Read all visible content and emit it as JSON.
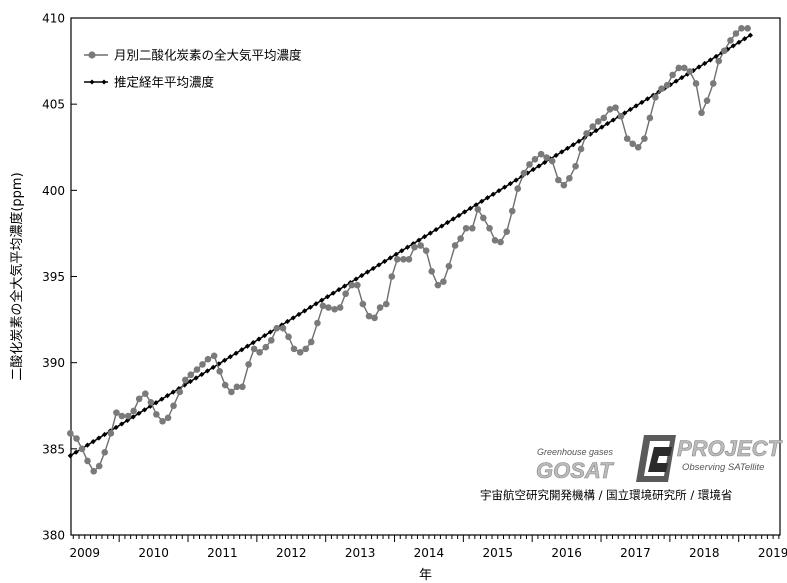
{
  "chart_data": {
    "type": "line",
    "title": "",
    "xlabel": "年",
    "ylabel": "二酸化炭素の全大気平均濃度(ppm)",
    "ylim": [
      380,
      410
    ],
    "yticks": [
      380,
      385,
      390,
      395,
      400,
      405,
      410
    ],
    "xlim": [
      2009.3,
      2019.6
    ],
    "xticks": [
      "2009",
      "2010",
      "2011",
      "2012",
      "2013",
      "2014",
      "2015",
      "2016",
      "2017",
      "2018",
      "2019"
    ],
    "grid": false,
    "legend_position": "top-left",
    "series": [
      {
        "name": "月別二酸化炭素の全大気平均濃度",
        "color": "#6e6e6e",
        "marker": "circle",
        "x": [
          2009.29,
          2009.38,
          2009.46,
          2009.54,
          2009.63,
          2009.71,
          2009.79,
          2009.88,
          2009.96,
          2010.04,
          2010.13,
          2010.21,
          2010.29,
          2010.38,
          2010.46,
          2010.54,
          2010.63,
          2010.71,
          2010.79,
          2010.88,
          2010.96,
          2011.04,
          2011.13,
          2011.21,
          2011.29,
          2011.38,
          2011.46,
          2011.54,
          2011.63,
          2011.71,
          2011.79,
          2011.88,
          2011.96,
          2012.04,
          2012.13,
          2012.21,
          2012.29,
          2012.38,
          2012.46,
          2012.54,
          2012.63,
          2012.71,
          2012.79,
          2012.88,
          2012.96,
          2013.04,
          2013.13,
          2013.21,
          2013.29,
          2013.38,
          2013.46,
          2013.54,
          2013.63,
          2013.71,
          2013.79,
          2013.88,
          2013.96,
          2014.04,
          2014.13,
          2014.21,
          2014.29,
          2014.38,
          2014.46,
          2014.54,
          2014.63,
          2014.71,
          2014.79,
          2014.88,
          2014.96,
          2015.04,
          2015.13,
          2015.21,
          2015.29,
          2015.38,
          2015.46,
          2015.54,
          2015.63,
          2015.71,
          2015.79,
          2015.88,
          2015.96,
          2016.04,
          2016.13,
          2016.21,
          2016.29,
          2016.38,
          2016.46,
          2016.54,
          2016.63,
          2016.71,
          2016.79,
          2016.88,
          2016.96,
          2017.04,
          2017.13,
          2017.21,
          2017.29,
          2017.38,
          2017.46,
          2017.54,
          2017.63,
          2017.71,
          2017.79,
          2017.88,
          2017.96,
          2018.04,
          2018.13,
          2018.21,
          2018.29,
          2018.38,
          2018.46,
          2018.54,
          2018.63,
          2018.71,
          2018.79,
          2018.88,
          2018.96,
          2019.04,
          2019.13
        ],
        "y": [
          385.9,
          385.6,
          385.0,
          384.3,
          383.7,
          384.0,
          384.8,
          385.9,
          387.1,
          386.9,
          386.9,
          387.2,
          387.9,
          388.2,
          387.7,
          387.0,
          386.6,
          386.8,
          387.5,
          388.3,
          389.0,
          389.3,
          389.6,
          389.9,
          390.2,
          390.4,
          389.5,
          388.7,
          388.3,
          388.6,
          388.6,
          389.9,
          390.8,
          390.6,
          390.9,
          391.3,
          392.0,
          392.0,
          391.5,
          390.8,
          390.6,
          390.8,
          391.2,
          392.3,
          393.3,
          393.2,
          393.1,
          393.2,
          394.0,
          394.5,
          394.5,
          393.4,
          392.7,
          392.6,
          393.2,
          393.4,
          395.0,
          396.0,
          396.0,
          396.0,
          396.7,
          396.8,
          396.5,
          395.3,
          394.5,
          394.7,
          395.6,
          396.8,
          397.2,
          397.8,
          397.8,
          398.9,
          398.4,
          397.8,
          397.1,
          397.0,
          397.6,
          398.8,
          400.1,
          401.0,
          401.5,
          401.8,
          402.1,
          401.9,
          401.7,
          400.6,
          400.3,
          400.7,
          401.4,
          402.4,
          403.3,
          403.7,
          404.0,
          404.2,
          404.7,
          404.8,
          404.3,
          403.0,
          402.7,
          402.5,
          403.0,
          404.2,
          405.4,
          405.9,
          406.1,
          406.7,
          407.1,
          407.1,
          406.9,
          406.2,
          404.5,
          405.2,
          406.2,
          407.5,
          408.1,
          408.7,
          409.1,
          409.4,
          409.4
        ]
      },
      {
        "name": "推定経年平均濃度",
        "color": "#000000",
        "marker": "diamond",
        "x_start": 2009.29,
        "x_end": 2019.17,
        "y_start": 384.6,
        "y_end": 409.0,
        "points": 120
      }
    ]
  },
  "logo": {
    "tagline": "Greenhouse gases",
    "name": "GOSAT",
    "project": "PROJECT",
    "subtitle": "Observing SATellite"
  },
  "credit": "宇宙航空研究開発機構 / 国立環境研究所 / 環境省"
}
